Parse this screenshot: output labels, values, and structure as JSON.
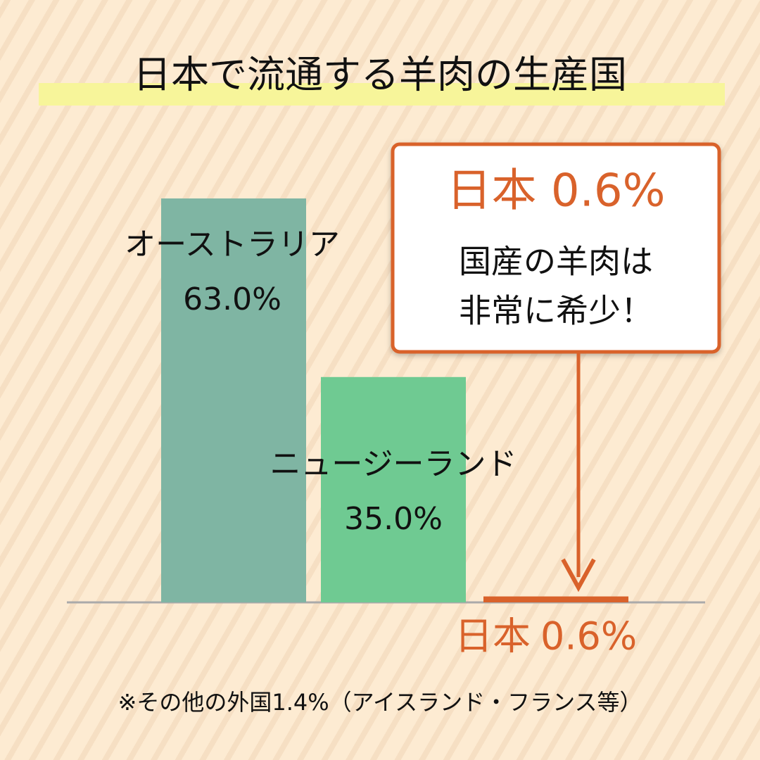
{
  "chart_data": {
    "type": "bar",
    "title": "日本で流通する羊肉の生産国",
    "categories": [
      "オーストラリア",
      "ニュージーランド",
      "日本"
    ],
    "values": [
      63.0,
      35.0,
      0.6
    ],
    "value_labels": [
      "63.0%",
      "35.0%",
      "0.6%"
    ],
    "colors": [
      "#7fb5a3",
      "#6fca92",
      "#d9622b"
    ],
    "callout": {
      "headline": "日本 0.6%",
      "lines": [
        "国産の羊肉は",
        "非常に希少！"
      ]
    },
    "footnote": "※その他の外国1.4%（アイスランド・フランス等）"
  }
}
